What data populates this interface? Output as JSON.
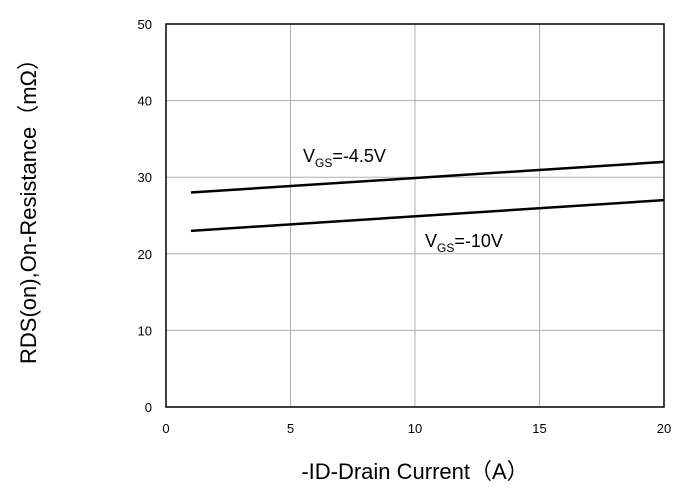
{
  "chart_data": {
    "type": "line",
    "xlabel": "-ID-Drain Current（A）",
    "ylabel": "RDS(on),On-Resistance（mΩ）",
    "xlim": [
      0,
      20
    ],
    "ylim": [
      0,
      50
    ],
    "xticks": [
      0,
      5,
      10,
      15,
      20
    ],
    "yticks": [
      0,
      10,
      20,
      30,
      40,
      50
    ],
    "grid": true,
    "series": [
      {
        "label_main": "V",
        "label_sub": "GS",
        "label_rest": "=-4.5V",
        "x": [
          1,
          20
        ],
        "y": [
          28,
          32
        ]
      },
      {
        "label_main": "V",
        "label_sub": "GS",
        "label_rest": "=-10V",
        "x": [
          1,
          20
        ],
        "y": [
          23,
          27
        ]
      }
    ]
  }
}
